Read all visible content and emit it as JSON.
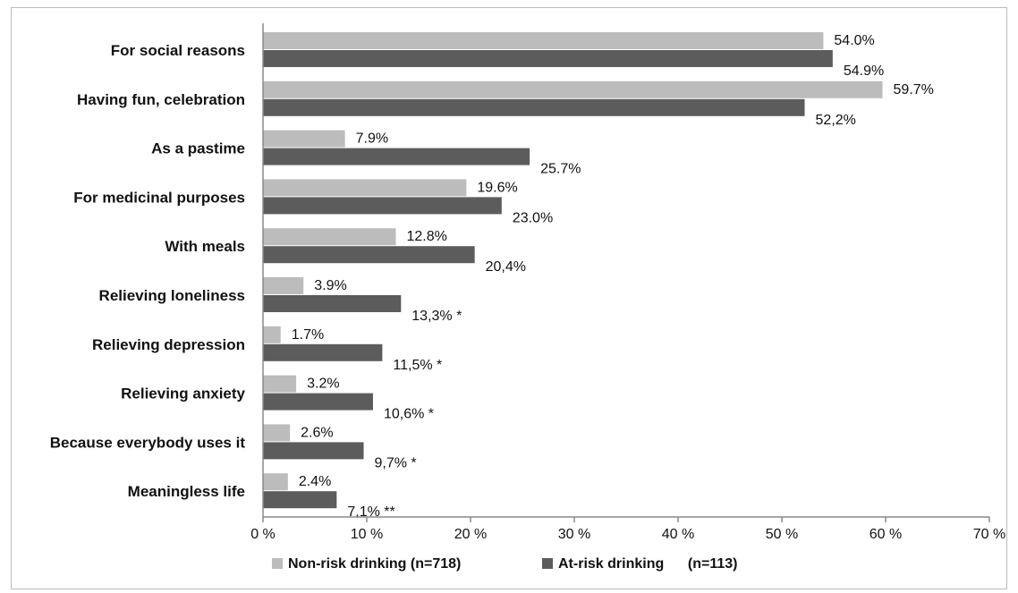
{
  "colors": {
    "non_risk": "#bcbcbc",
    "at_risk": "#5c5c5c",
    "axis": "#8a8a8a"
  },
  "chart_data": {
    "type": "bar",
    "orientation": "horizontal",
    "categories": [
      "For social reasons",
      "Having fun, celebration",
      "As a pastime",
      "For medicinal purposes",
      "With meals",
      "Relieving loneliness",
      "Relieving depression",
      "Relieving anxiety",
      "Because everybody uses it",
      "Meaningless life"
    ],
    "series": [
      {
        "name": "Non-risk drinking (n=718)",
        "values": [
          54.0,
          59.7,
          7.9,
          19.6,
          12.8,
          3.9,
          1.7,
          3.2,
          2.6,
          2.4
        ],
        "labels": [
          "54.0%",
          "59.7%",
          "7.9%",
          "19.6%",
          "12.8%",
          "3.9%",
          "1.7%",
          "3.2%",
          "2.6%",
          "2.4%"
        ]
      },
      {
        "name": "At-risk drinking      (n=113)",
        "values": [
          54.9,
          52.2,
          25.7,
          23.0,
          20.4,
          13.3,
          11.5,
          10.6,
          9.7,
          7.1
        ],
        "labels": [
          "54.9%",
          "52,2%",
          "25.7%",
          "23.0%",
          "20,4%",
          "13,3% *",
          "11,5% *",
          "10,6% *",
          "9,7% *",
          "7,1% **"
        ]
      }
    ],
    "xlim": [
      0,
      70
    ],
    "xticks": [
      "0 %",
      "10 %",
      "20 %",
      "30 %",
      "40 %",
      "50 %",
      "60 %",
      "70 %"
    ],
    "legend_position": "bottom",
    "grid": false
  }
}
